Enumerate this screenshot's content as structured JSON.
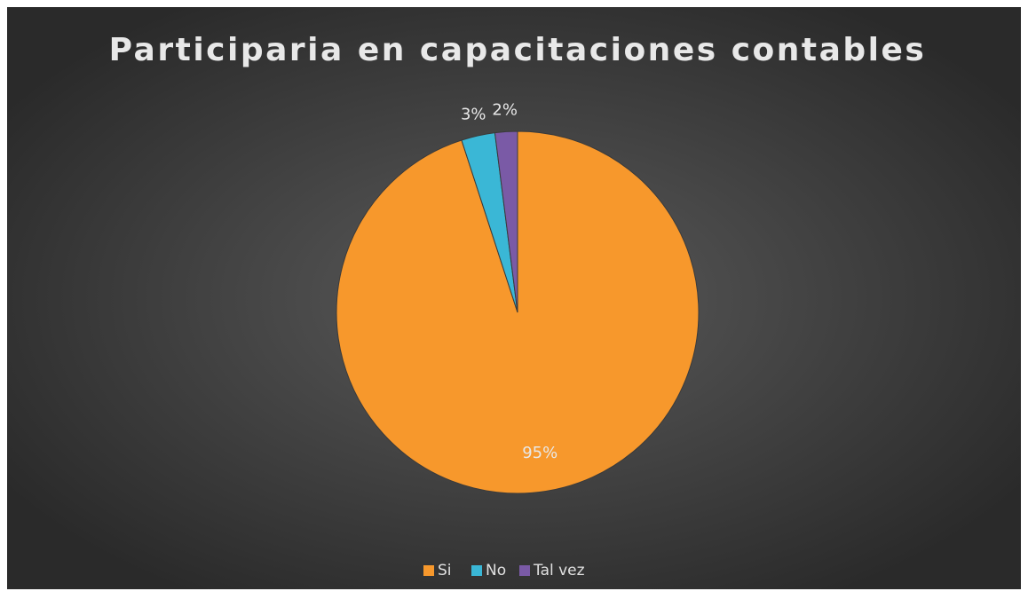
{
  "chart_data": {
    "type": "pie",
    "title": "Participaria en capacitaciones contables",
    "categories": [
      "Si",
      "No",
      "Tal vez"
    ],
    "values": [
      95,
      3,
      2
    ],
    "value_labels": [
      "95%",
      "3%",
      "2%"
    ],
    "colors": [
      "#f7982c",
      "#3ab7d6",
      "#7a5aa6"
    ],
    "legend": "bottom"
  }
}
